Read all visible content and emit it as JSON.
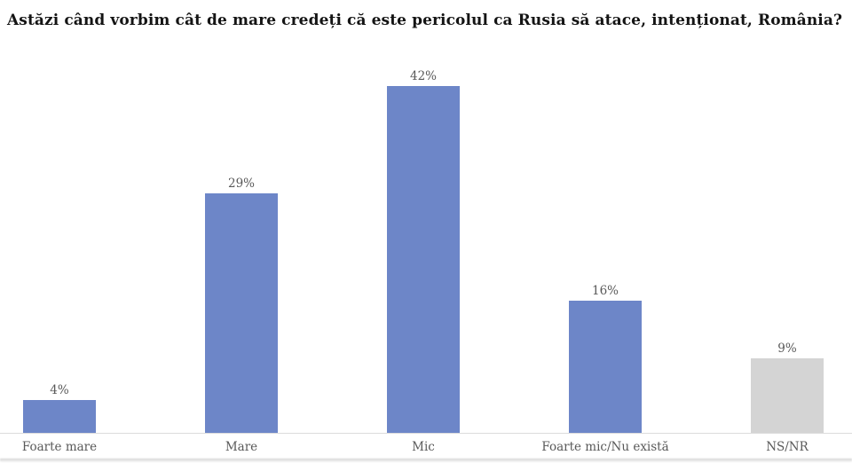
{
  "title": "Astăzi când vorbim cât de mare credeți că este pericolul ca Rusia să atace, intenționat, România?",
  "chart_data": {
    "type": "bar",
    "title": "Astăzi când vorbim cât de mare credeți că este pericolul ca Rusia să atace, intenționat, România?",
    "categories": [
      "Foarte mare",
      "Mare",
      "Mic",
      "Foarte mic/Nu există",
      "NS/NR"
    ],
    "values": [
      4,
      29,
      42,
      16,
      9
    ],
    "value_labels": [
      "4%",
      "29%",
      "42%",
      "16%",
      "9%"
    ],
    "xlabel": "",
    "ylabel": "",
    "ylim": [
      0,
      45
    ],
    "grid": false,
    "legend": false,
    "axis_labels_hidden": true,
    "colors": {
      "bar_default": "#6d86c8",
      "bar_nsnr": "#d4d4d4",
      "value_label": "#595959",
      "category_label": "#595959",
      "axis_line": "#dcdcdc",
      "title": "#141414",
      "background": "#ffffff"
    },
    "bar_colors": [
      "#6d86c8",
      "#6d86c8",
      "#6d86c8",
      "#6d86c8",
      "#d4d4d4"
    ]
  }
}
